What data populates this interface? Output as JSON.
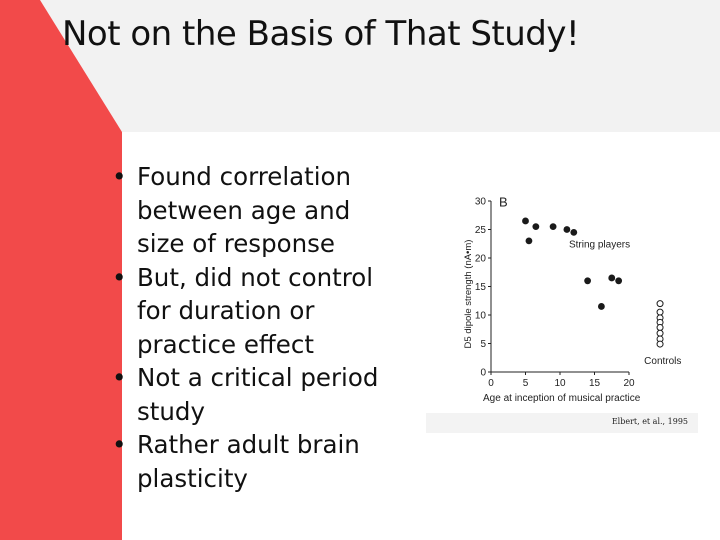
{
  "slide": {
    "title": "Not on the Basis of That Study!",
    "bullets": [
      "Found correlation between age and size of response",
      "But, did not control for duration or practice effect",
      "Not a critical period study",
      "Rather adult brain plasticity"
    ],
    "bullet_symbol": "•",
    "colors": {
      "accent": "#f24a4a",
      "panel": "#f2f2f2",
      "text": "#111111"
    }
  },
  "figure": {
    "credit": "Elbert, et al., 1995",
    "chart_data": {
      "type": "scatter",
      "panel_label": "B",
      "xlabel": "Age at inception of musical practice",
      "ylabel": "D5 dipole strength (nA•m)",
      "xlim": [
        0,
        20
      ],
      "ylim": [
        0,
        30
      ],
      "xticks": [
        "0",
        "5",
        "10",
        "15",
        "20"
      ],
      "yticks": [
        "0",
        "5",
        "10",
        "15",
        "20",
        "25",
        "30"
      ],
      "annotations": [
        "String players",
        "Controls"
      ],
      "series": [
        {
          "name": "String players",
          "marker": "filled",
          "points": [
            [
              5,
              26.5
            ],
            [
              5.5,
              23
            ],
            [
              6.5,
              25.5
            ],
            [
              9,
              25.5
            ],
            [
              11,
              25
            ],
            [
              12,
              24.5
            ],
            [
              14,
              16
            ],
            [
              16,
              11.5
            ],
            [
              17.5,
              16.5
            ],
            [
              18.5,
              16
            ]
          ]
        },
        {
          "name": "Controls",
          "marker": "open",
          "points": [
            [
              24.5,
              12
            ],
            [
              24.5,
              10.5
            ],
            [
              24.5,
              9.5
            ],
            [
              24.5,
              8.7
            ],
            [
              24.5,
              7.8
            ],
            [
              24.5,
              6.8
            ],
            [
              24.5,
              5.8
            ],
            [
              24.5,
              4.9
            ]
          ]
        }
      ]
    }
  }
}
